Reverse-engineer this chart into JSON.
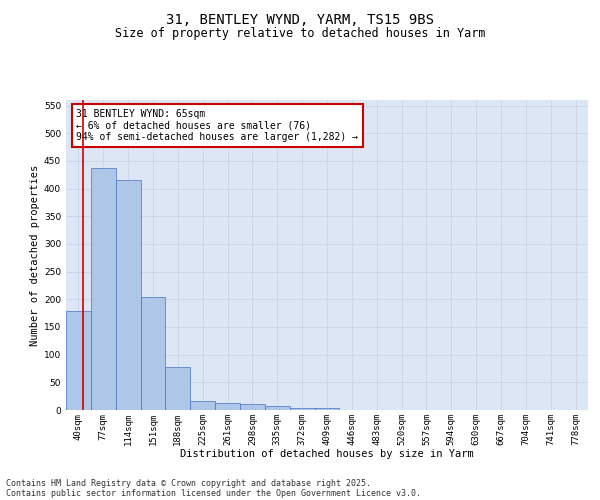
{
  "title_line1": "31, BENTLEY WYND, YARM, TS15 9BS",
  "title_line2": "Size of property relative to detached houses in Yarm",
  "xlabel": "Distribution of detached houses by size in Yarm",
  "ylabel": "Number of detached properties",
  "categories": [
    "40sqm",
    "77sqm",
    "114sqm",
    "151sqm",
    "188sqm",
    "225sqm",
    "261sqm",
    "298sqm",
    "335sqm",
    "372sqm",
    "409sqm",
    "446sqm",
    "483sqm",
    "520sqm",
    "557sqm",
    "594sqm",
    "630sqm",
    "667sqm",
    "704sqm",
    "741sqm",
    "778sqm"
  ],
  "values": [
    178,
    438,
    416,
    204,
    78,
    16,
    13,
    11,
    8,
    4,
    4,
    0,
    0,
    0,
    0,
    0,
    0,
    0,
    0,
    0,
    0
  ],
  "bar_color": "#aec6e8",
  "bar_edge_color": "#4472c4",
  "annotation_text": "31 BENTLEY WYND: 65sqm\n← 6% of detached houses are smaller (76)\n94% of semi-detached houses are larger (1,282) →",
  "annotation_box_color": "#ffffff",
  "annotation_box_edge_color": "#cc0000",
  "vline_color": "#cc0000",
  "vline_x": 0.5,
  "ylim": [
    0,
    560
  ],
  "yticks": [
    0,
    50,
    100,
    150,
    200,
    250,
    300,
    350,
    400,
    450,
    500,
    550
  ],
  "grid_color": "#c8d4e8",
  "bg_color": "#dce6f5",
  "footer_line1": "Contains HM Land Registry data © Crown copyright and database right 2025.",
  "footer_line2": "Contains public sector information licensed under the Open Government Licence v3.0.",
  "title_fontsize": 10,
  "subtitle_fontsize": 8.5,
  "axis_label_fontsize": 7.5,
  "tick_fontsize": 6.5,
  "annotation_fontsize": 7,
  "footer_fontsize": 6
}
